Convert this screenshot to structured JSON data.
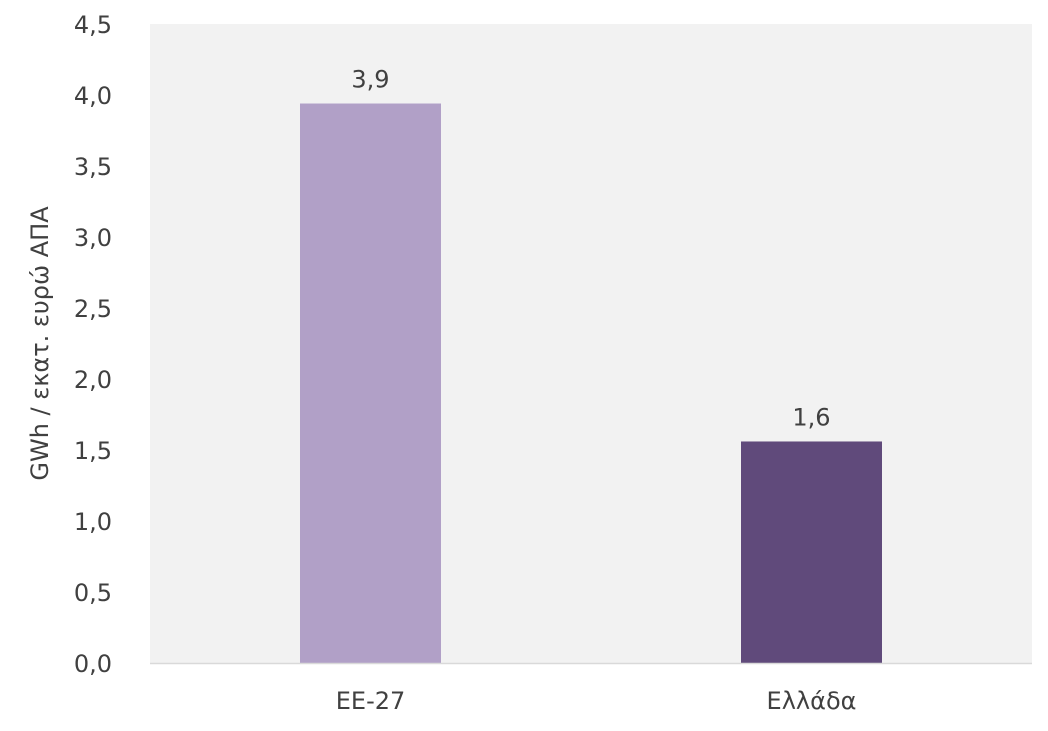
{
  "chart_data": {
    "type": "bar",
    "title": "",
    "xlabel": "",
    "ylabel": "GWh / εκατ. ευρώ ΑΠΑ",
    "ylim": [
      0,
      4.5
    ],
    "yticks": [
      0.0,
      0.5,
      1.0,
      1.5,
      2.0,
      2.5,
      3.0,
      3.5,
      4.0,
      4.5
    ],
    "ytick_labels": [
      "0,0",
      "0,5",
      "1,0",
      "1,5",
      "2,0",
      "2,5",
      "3,0",
      "3,5",
      "4,0",
      "4,5"
    ],
    "categories": [
      "ΕΕ-27",
      "Ελλάδα"
    ],
    "values": [
      3.94,
      1.56
    ],
    "data_labels": [
      "3,9",
      "1,6"
    ],
    "bar_colors": [
      "#b1a0c7",
      "#604a7b"
    ],
    "plot_background": "#f2f2f2",
    "axis_color": "#d9d9d9",
    "grid": false,
    "legend": "none"
  }
}
